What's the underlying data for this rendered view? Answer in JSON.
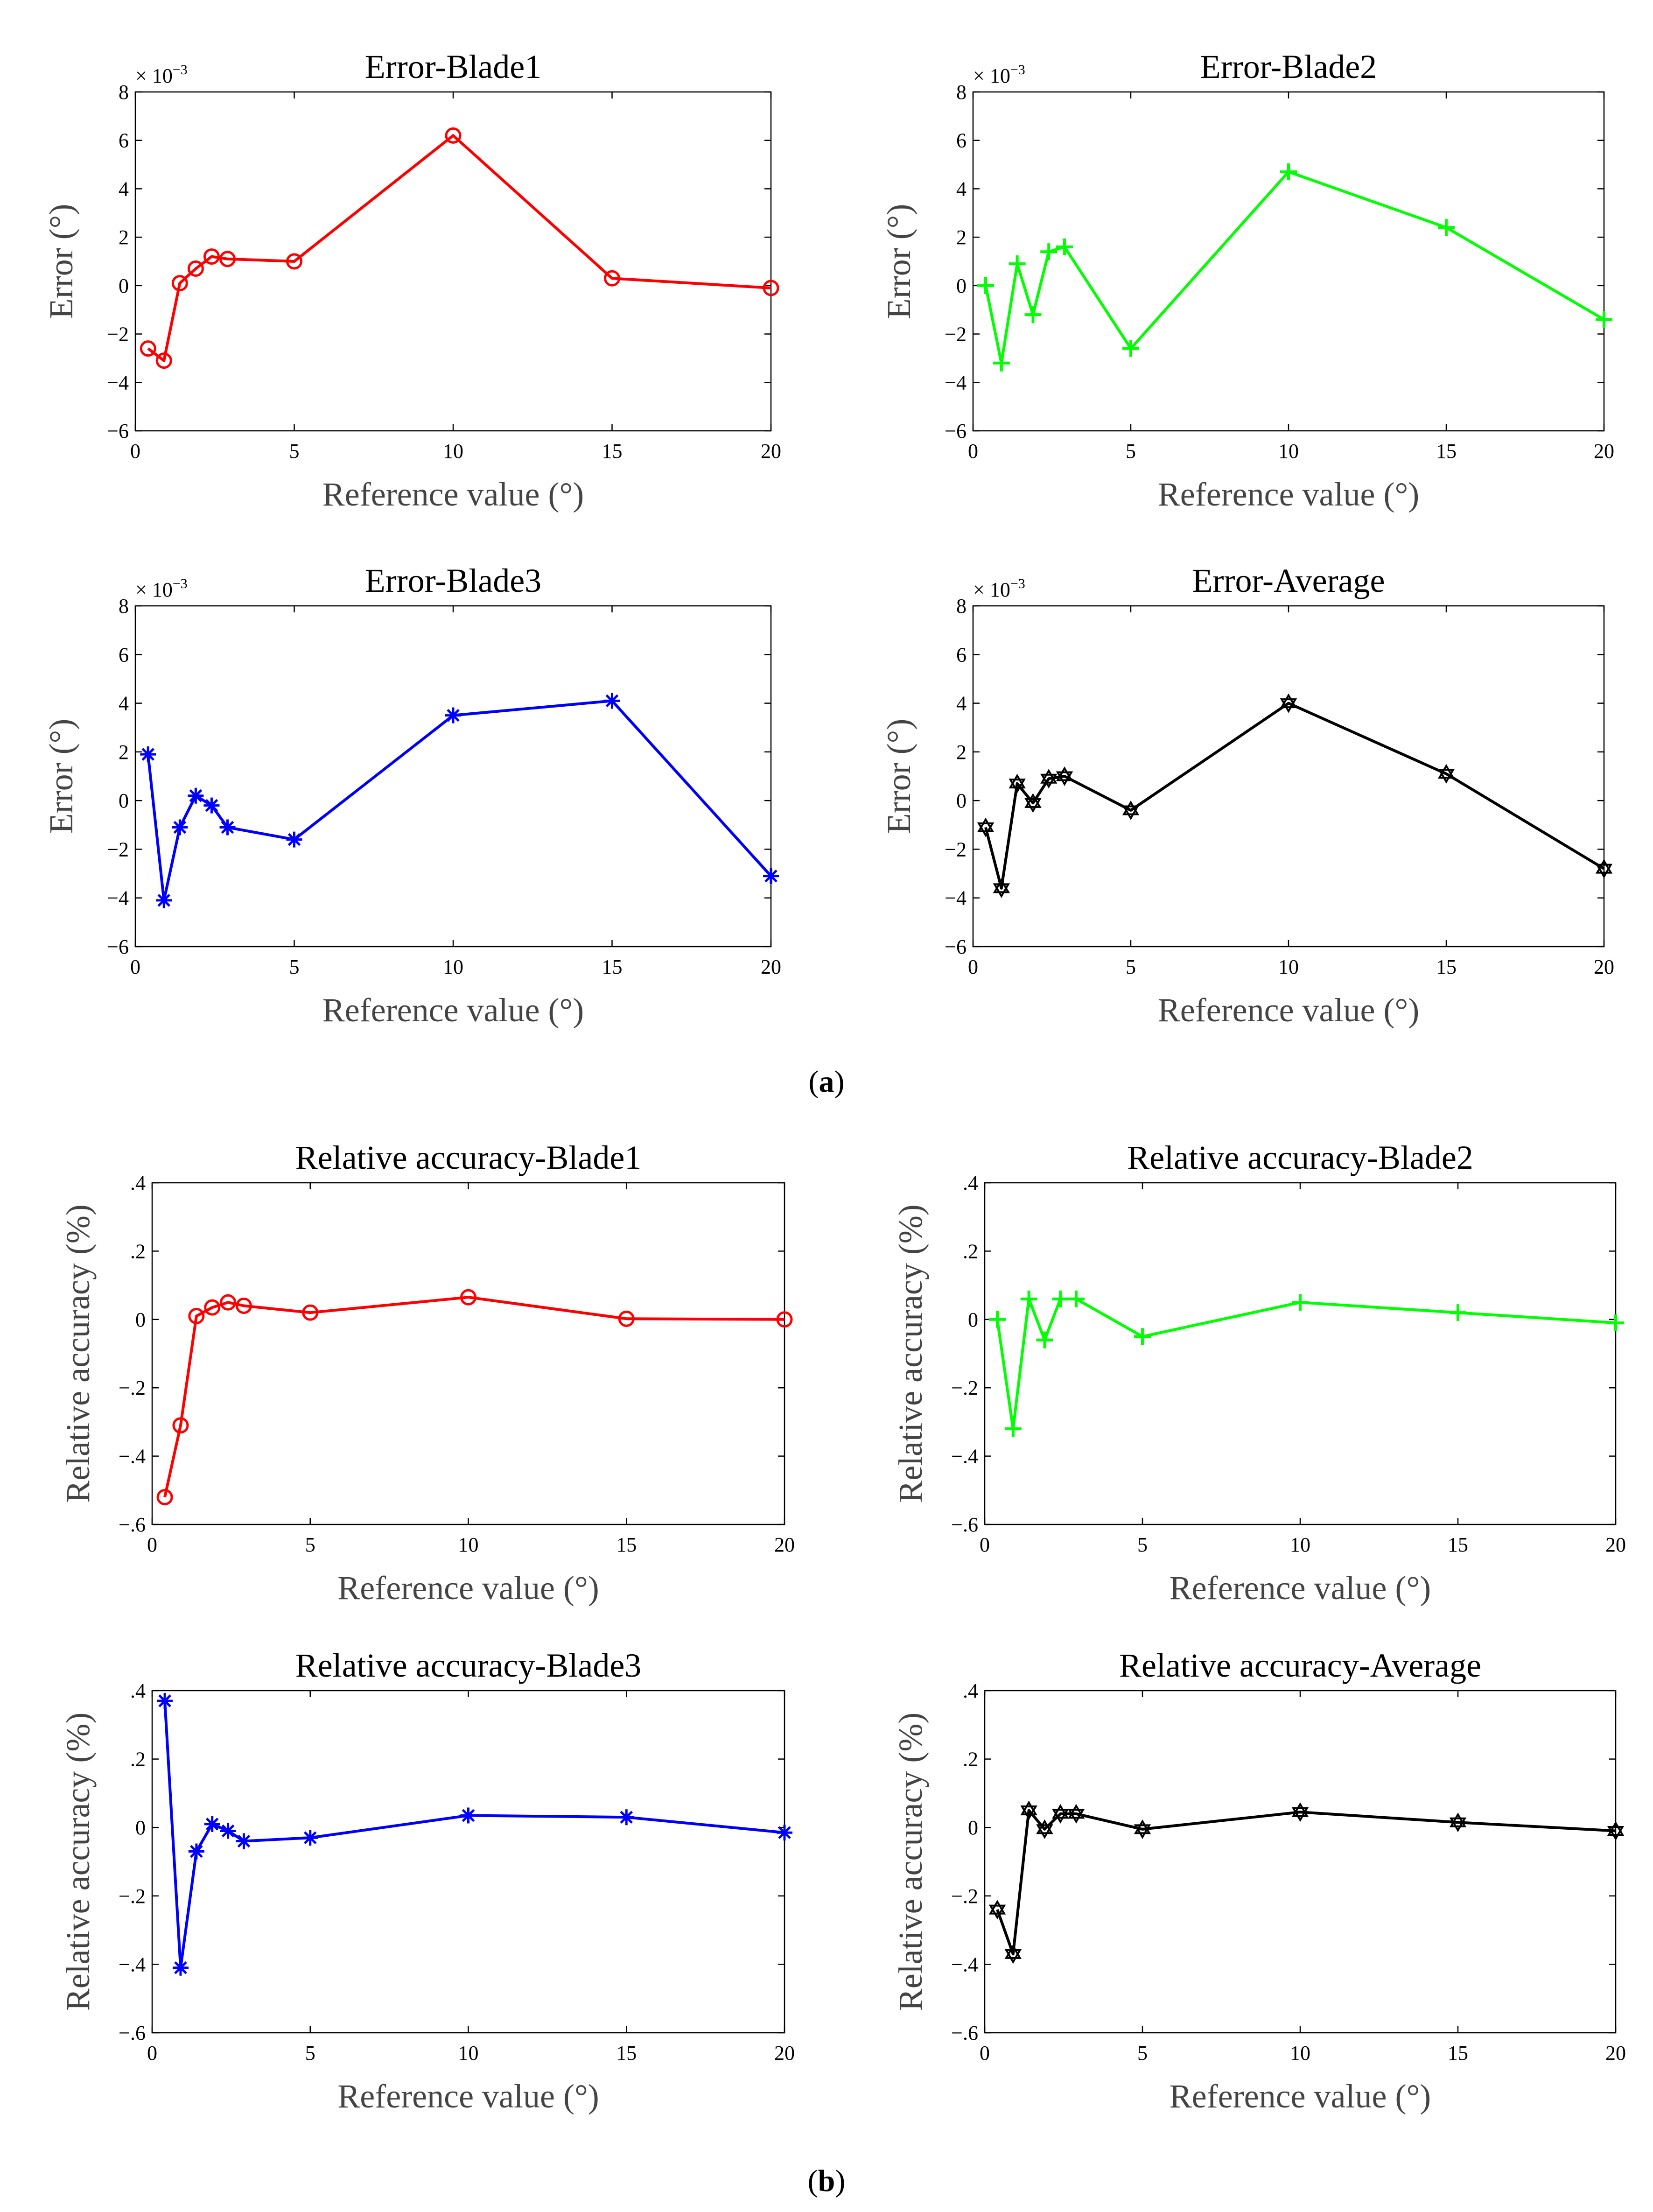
{
  "figure": {
    "label_a": "a",
    "label_b": "b",
    "colors": {
      "red": "#ff0000",
      "green": "#00ff00",
      "blue": "#0000ff",
      "black": "#000000"
    },
    "exponent_label": "× 10"
  },
  "chart_data": [
    {
      "type": "line",
      "panel": "a",
      "title": "Error-Blade1",
      "xlabel": "Reference value (°)",
      "ylabel": "Error (°)",
      "xlim": [
        0,
        20
      ],
      "ylim": [
        -6,
        8
      ],
      "y_exponent": "-3",
      "xticks": [
        0,
        5,
        10,
        15,
        20
      ],
      "yticks": [
        -6,
        -4,
        -2,
        0,
        2,
        4,
        6,
        8
      ],
      "marker": "circle",
      "color": "#ff0000",
      "grid": false,
      "x": [
        0.4,
        0.9,
        1.4,
        1.9,
        2.4,
        2.9,
        5,
        10,
        15,
        20
      ],
      "values": [
        -2.6,
        -3.1,
        0.1,
        0.7,
        1.2,
        1.1,
        1.0,
        6.2,
        0.3,
        -0.1
      ]
    },
    {
      "type": "line",
      "panel": "a",
      "title": "Error-Blade2",
      "xlabel": "Reference value (°)",
      "ylabel": "Error (°)",
      "xlim": [
        0,
        20
      ],
      "ylim": [
        -6,
        8
      ],
      "y_exponent": "-3",
      "xticks": [
        0,
        5,
        10,
        15,
        20
      ],
      "yticks": [
        -6,
        -4,
        -2,
        0,
        2,
        4,
        6,
        8
      ],
      "marker": "plus",
      "color": "#00ff00",
      "grid": false,
      "x": [
        0.4,
        0.9,
        1.4,
        1.9,
        2.4,
        2.9,
        5,
        10,
        15,
        20
      ],
      "values": [
        0.0,
        -3.2,
        0.9,
        -1.2,
        1.4,
        1.6,
        -2.6,
        4.7,
        2.4,
        -1.4
      ]
    },
    {
      "type": "line",
      "panel": "a",
      "title": "Error-Blade3",
      "xlabel": "Reference value (°)",
      "ylabel": "Error (°)",
      "xlim": [
        0,
        20
      ],
      "ylim": [
        -6,
        8
      ],
      "y_exponent": "-3",
      "xticks": [
        0,
        5,
        10,
        15,
        20
      ],
      "yticks": [
        -6,
        -4,
        -2,
        0,
        2,
        4,
        6,
        8
      ],
      "marker": "asterisk",
      "color": "#0000ff",
      "grid": false,
      "x": [
        0.4,
        0.9,
        1.4,
        1.9,
        2.4,
        2.9,
        5,
        10,
        15,
        20
      ],
      "values": [
        1.9,
        -4.1,
        -1.1,
        0.2,
        -0.2,
        -1.1,
        -1.6,
        3.5,
        4.1,
        -3.1
      ]
    },
    {
      "type": "line",
      "panel": "a",
      "title": "Error-Average",
      "xlabel": "Reference value (°)",
      "ylabel": "Error (°)",
      "xlim": [
        0,
        20
      ],
      "ylim": [
        -6,
        8
      ],
      "y_exponent": "-3",
      "xticks": [
        0,
        5,
        10,
        15,
        20
      ],
      "yticks": [
        -6,
        -4,
        -2,
        0,
        2,
        4,
        6,
        8
      ],
      "marker": "hexagram",
      "color": "#000000",
      "grid": false,
      "x": [
        0.4,
        0.9,
        1.4,
        1.9,
        2.4,
        2.9,
        5,
        10,
        15,
        20
      ],
      "values": [
        -1.1,
        -3.6,
        0.7,
        -0.1,
        0.9,
        1.0,
        -0.4,
        4.0,
        1.1,
        -2.8
      ]
    },
    {
      "type": "line",
      "panel": "b",
      "title": "Relative accuracy-Blade1",
      "xlabel": "Reference value (°)",
      "ylabel": "Relative accuracy (%)",
      "xlim": [
        0,
        20
      ],
      "ylim": [
        -0.6,
        0.4
      ],
      "xticks": [
        0,
        5,
        10,
        15,
        20
      ],
      "yticks": [
        -0.6,
        -0.4,
        -0.2,
        0,
        0.2,
        0.4
      ],
      "marker": "circle",
      "color": "#ff0000",
      "grid": false,
      "x": [
        0.4,
        0.9,
        1.4,
        1.9,
        2.4,
        2.9,
        5,
        10,
        15,
        20
      ],
      "values": [
        -0.52,
        -0.31,
        0.01,
        0.035,
        0.05,
        0.04,
        0.02,
        0.065,
        0.002,
        0.0
      ]
    },
    {
      "type": "line",
      "panel": "b",
      "title": "Relative accuracy-Blade2",
      "xlabel": "Reference value (°)",
      "ylabel": "Relative accuracy (%)",
      "xlim": [
        0,
        20
      ],
      "ylim": [
        -0.6,
        0.4
      ],
      "xticks": [
        0,
        5,
        10,
        15,
        20
      ],
      "yticks": [
        -0.6,
        -0.4,
        -0.2,
        0,
        0.2,
        0.4
      ],
      "marker": "plus",
      "color": "#00ff00",
      "grid": false,
      "x": [
        0.4,
        0.9,
        1.4,
        1.9,
        2.4,
        2.9,
        5,
        10,
        15,
        20
      ],
      "values": [
        0.0,
        -0.32,
        0.06,
        -0.06,
        0.06,
        0.06,
        -0.05,
        0.05,
        0.02,
        -0.01
      ]
    },
    {
      "type": "line",
      "panel": "b",
      "title": "Relative accuracy-Blade3",
      "xlabel": "Reference value (°)",
      "ylabel": "Relative accuracy (%)",
      "xlim": [
        0,
        20
      ],
      "ylim": [
        -0.6,
        0.4
      ],
      "xticks": [
        0,
        5,
        10,
        15,
        20
      ],
      "yticks": [
        -0.6,
        -0.4,
        -0.2,
        0,
        0.2,
        0.4
      ],
      "marker": "asterisk",
      "color": "#0000ff",
      "grid": false,
      "x": [
        0.4,
        0.9,
        1.4,
        1.9,
        2.4,
        2.9,
        5,
        10,
        15,
        20
      ],
      "values": [
        0.37,
        -0.41,
        -0.07,
        0.01,
        -0.01,
        -0.04,
        -0.03,
        0.035,
        0.03,
        -0.015
      ]
    },
    {
      "type": "line",
      "panel": "b",
      "title": "Relative accuracy-Average",
      "xlabel": "Reference value (°)",
      "ylabel": "Relative accuracy (%)",
      "xlim": [
        0,
        20
      ],
      "ylim": [
        -0.6,
        0.4
      ],
      "xticks": [
        0,
        5,
        10,
        15,
        20
      ],
      "yticks": [
        -0.6,
        -0.4,
        -0.2,
        0,
        0.2,
        0.4
      ],
      "marker": "hexagram",
      "color": "#000000",
      "grid": false,
      "x": [
        0.4,
        0.9,
        1.4,
        1.9,
        2.4,
        2.9,
        5,
        10,
        15,
        20
      ],
      "values": [
        -0.24,
        -0.37,
        0.05,
        -0.005,
        0.04,
        0.04,
        -0.005,
        0.045,
        0.015,
        -0.01
      ]
    }
  ]
}
